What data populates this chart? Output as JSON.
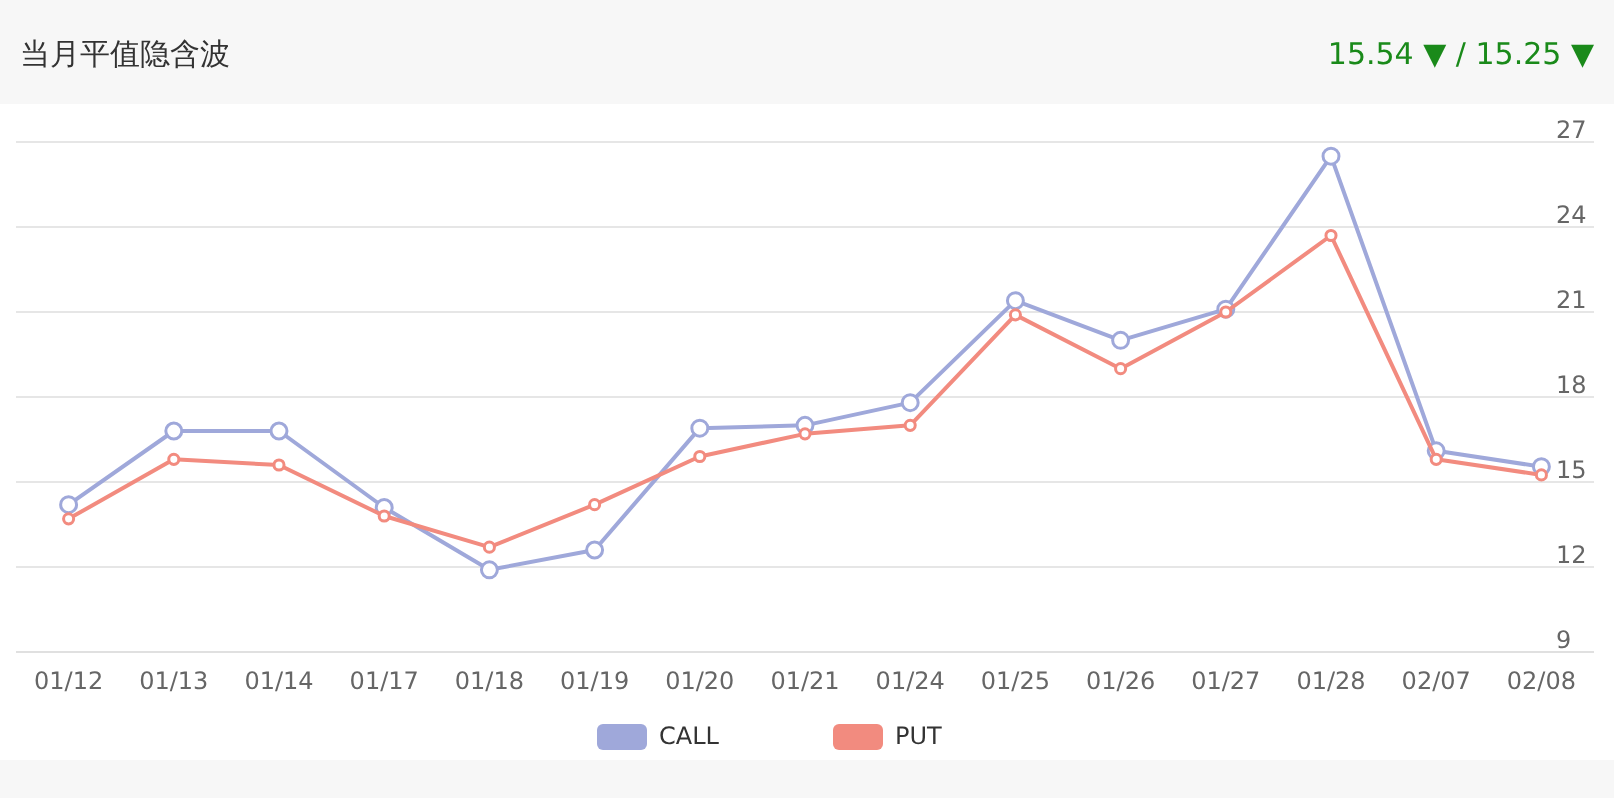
{
  "chart_data": {
    "type": "line",
    "title": "当月平值隐含波",
    "annotations": [
      "15.54 ▼ / 15.25 ▼"
    ],
    "categories": [
      "01/12",
      "01/13",
      "01/14",
      "01/17",
      "01/18",
      "01/19",
      "01/20",
      "01/21",
      "01/24",
      "01/25",
      "01/26",
      "01/27",
      "01/28",
      "02/07",
      "02/08"
    ],
    "series": [
      {
        "name": "CALL",
        "color": "#9fa8da",
        "values": [
          14.2,
          16.8,
          16.8,
          14.1,
          11.9,
          12.6,
          16.9,
          17.0,
          17.8,
          21.4,
          20.0,
          21.1,
          26.5,
          16.1,
          15.54
        ]
      },
      {
        "name": "PUT",
        "color": "#f28b7f",
        "values": [
          13.7,
          15.8,
          15.6,
          13.8,
          12.7,
          14.2,
          15.9,
          16.7,
          17.0,
          20.9,
          19.0,
          21.0,
          23.7,
          15.8,
          15.25
        ]
      }
    ],
    "ylim": [
      9,
      27
    ],
    "yticks": [
      9,
      12,
      15,
      18,
      21,
      24,
      27
    ],
    "grid": "y",
    "legend": "bottom",
    "marker": "circle",
    "line_style": "solid"
  }
}
